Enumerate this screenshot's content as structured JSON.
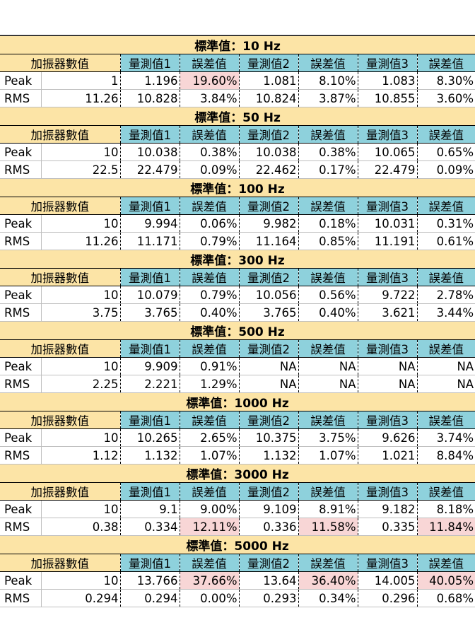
{
  "header_label": "加振器數值",
  "measure_headers": [
    "量測值1",
    "誤差值",
    "量測值2",
    "誤差值",
    "量測值3",
    "誤差值"
  ],
  "highlight_color": "#f8d6d6",
  "sections": [
    {
      "title": "標準值：10 Hz",
      "rows": [
        {
          "label": "Peak",
          "cells": [
            "1",
            "1.196",
            "19.60%",
            "1.081",
            "8.10%",
            "1.083",
            "8.30%"
          ],
          "hl": [
            2
          ]
        },
        {
          "label": "RMS",
          "cells": [
            "11.26",
            "10.828",
            "3.84%",
            "10.824",
            "3.87%",
            "10.855",
            "3.60%"
          ],
          "hl": []
        }
      ]
    },
    {
      "title": "標準值：50 Hz",
      "rows": [
        {
          "label": "Peak",
          "cells": [
            "10",
            "10.038",
            "0.38%",
            "10.038",
            "0.38%",
            "10.065",
            "0.65%"
          ],
          "hl": []
        },
        {
          "label": "RMS",
          "cells": [
            "22.5",
            "22.479",
            "0.09%",
            "22.462",
            "0.17%",
            "22.479",
            "0.09%"
          ],
          "hl": []
        }
      ]
    },
    {
      "title": "標準值：100 Hz",
      "rows": [
        {
          "label": "Peak",
          "cells": [
            "10",
            "9.994",
            "0.06%",
            "9.982",
            "0.18%",
            "10.031",
            "0.31%"
          ],
          "hl": []
        },
        {
          "label": "RMS",
          "cells": [
            "11.26",
            "11.171",
            "0.79%",
            "11.164",
            "0.85%",
            "11.191",
            "0.61%"
          ],
          "hl": []
        }
      ]
    },
    {
      "title": "標準值：300 Hz",
      "rows": [
        {
          "label": "Peak",
          "cells": [
            "10",
            "10.079",
            "0.79%",
            "10.056",
            "0.56%",
            "9.722",
            "2.78%"
          ],
          "hl": []
        },
        {
          "label": "RMS",
          "cells": [
            "3.75",
            "3.765",
            "0.40%",
            "3.765",
            "0.40%",
            "3.621",
            "3.44%"
          ],
          "hl": []
        }
      ]
    },
    {
      "title": "標準值：500 Hz",
      "rows": [
        {
          "label": "Peak",
          "cells": [
            "10",
            "9.909",
            "0.91%",
            "NA",
            "NA",
            "NA",
            "NA"
          ],
          "hl": []
        },
        {
          "label": "RMS",
          "cells": [
            "2.25",
            "2.221",
            "1.29%",
            "NA",
            "NA",
            "NA",
            "NA"
          ],
          "hl": []
        }
      ]
    },
    {
      "title": "標準值：1000 Hz",
      "rows": [
        {
          "label": "Peak",
          "cells": [
            "10",
            "10.265",
            "2.65%",
            "10.375",
            "3.75%",
            "9.626",
            "3.74%"
          ],
          "hl": []
        },
        {
          "label": "RMS",
          "cells": [
            "1.12",
            "1.132",
            "1.07%",
            "1.132",
            "1.07%",
            "1.021",
            "8.84%"
          ],
          "hl": []
        }
      ]
    },
    {
      "title": "標準值：3000 Hz",
      "rows": [
        {
          "label": "Peak",
          "cells": [
            "10",
            "9.1",
            "9.00%",
            "9.109",
            "8.91%",
            "9.182",
            "8.18%"
          ],
          "hl": []
        },
        {
          "label": "RMS",
          "cells": [
            "0.38",
            "0.334",
            "12.11%",
            "0.336",
            "11.58%",
            "0.335",
            "11.84%"
          ],
          "hl": [
            2,
            4,
            6
          ]
        }
      ]
    },
    {
      "title": "標準值：5000 Hz",
      "rows": [
        {
          "label": "Peak",
          "cells": [
            "10",
            "13.766",
            "37.66%",
            "13.64",
            "36.40%",
            "14.005",
            "40.05%"
          ],
          "hl": [
            2,
            4,
            6
          ]
        },
        {
          "label": "RMS",
          "cells": [
            "0.294",
            "0.294",
            "0.00%",
            "0.293",
            "0.34%",
            "0.296",
            "0.68%"
          ],
          "hl": []
        }
      ]
    }
  ]
}
